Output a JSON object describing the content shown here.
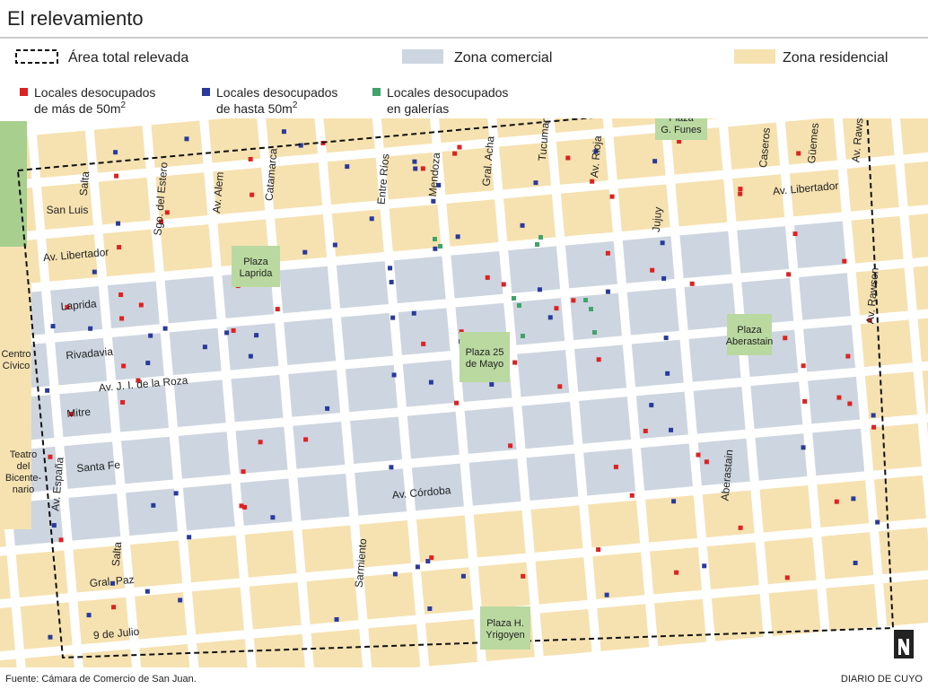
{
  "header": {
    "title": "El relevamiento"
  },
  "legend": {
    "area": "Área total relevada",
    "commercial": "Zona comercial",
    "residential": "Zona residencial",
    "large": {
      "line1": "Locales desocupados",
      "line2": "de más de 50m",
      "sup": "2"
    },
    "small": {
      "line1": "Locales desocupados",
      "line2": "de hasta 50m",
      "sup": "2"
    },
    "gallery": {
      "line1": "Locales desocupados",
      "line2": "en galerías"
    }
  },
  "streets": [
    "San Luis",
    "Av. Libertador",
    "Laprida",
    "Rivadavia",
    "Av. J. I. de la Roza",
    "Mitre",
    "Santa Fe",
    "Av. Córdoba",
    "Gral. Paz",
    "9 de Julio",
    "Av. Libertador",
    "Salta",
    "Sgo. del Estero",
    "Av. Alem",
    "Catamarca",
    "Entre Ríos",
    "Mendoza",
    "Gral. Acha",
    "Tucuman",
    "Av. Rioja",
    "Jujuy",
    "Caseros",
    "Güemes",
    "Av. Rawson",
    "Av. Rawson",
    "Av. España",
    "Salta",
    "Sarmiento",
    "Aberastain"
  ],
  "plazas": [
    [
      "Plaza",
      "G. Funes"
    ],
    [
      "Plaza",
      "Laprida"
    ],
    [
      "Plaza 25",
      "de Mayo"
    ],
    [
      "Plaza",
      "Aberastain"
    ],
    [
      "Plaza H.",
      "Yrigoyen"
    ]
  ],
  "places": [
    [
      "Centro",
      "Cívico"
    ],
    [
      "Teatro",
      "del",
      "Bicente-",
      "nario"
    ]
  ],
  "footer": {
    "source": "Fuente: Cámara de Comercio de San Juan.",
    "credit": "DIARIO DE CUYO"
  }
}
